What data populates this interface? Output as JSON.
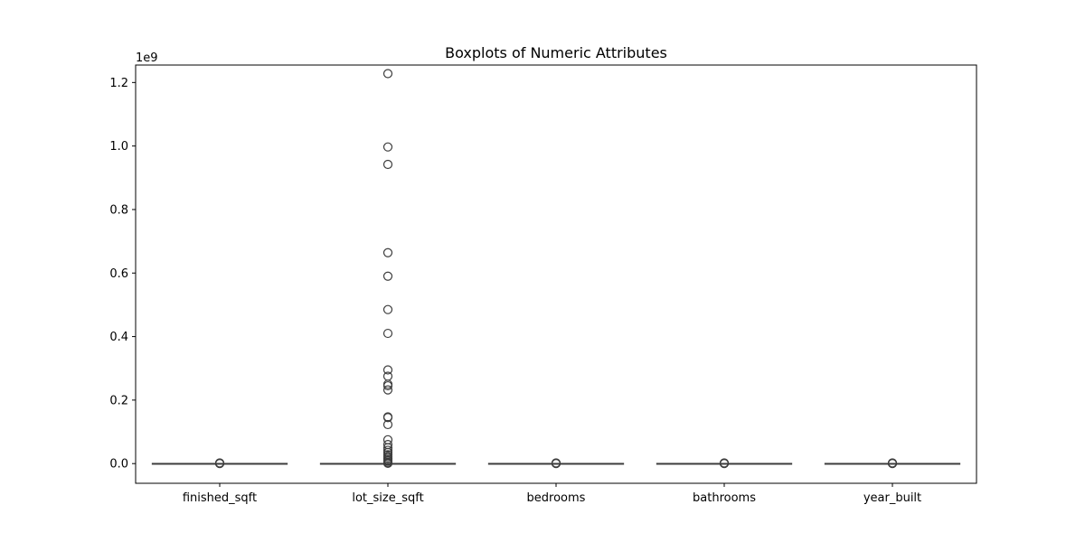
{
  "chart_data": {
    "type": "box",
    "title": "Boxplots of Numeric Attributes",
    "xlabel": "",
    "ylabel": "",
    "y_offset_label": "1e9",
    "ylim": [
      -0.062,
      1.255
    ],
    "y_ticks": [
      0.0,
      0.2,
      0.4,
      0.6,
      0.8,
      1.0,
      1.2
    ],
    "y_tick_labels": [
      "0.0",
      "0.2",
      "0.4",
      "0.6",
      "0.8",
      "1.0",
      "1.2"
    ],
    "grid": false,
    "categories": [
      "finished_sqft",
      "lot_size_sqft",
      "bedrooms",
      "bathrooms",
      "year_built"
    ],
    "boxes": [
      {
        "name": "finished_sqft",
        "whisker_low": 0,
        "q1": 0,
        "median": 0,
        "q3": 0,
        "whisker_high": 0,
        "fliers": [
          0.0,
          0.001,
          0.002
        ]
      },
      {
        "name": "lot_size_sqft",
        "whisker_low": 0,
        "q1": 0,
        "median": 0,
        "q3": 0,
        "whisker_high": 0,
        "fliers": [
          1.228,
          0.997,
          0.942,
          0.664,
          0.59,
          0.485,
          0.41,
          0.295,
          0.275,
          0.25,
          0.245,
          0.232,
          0.147,
          0.145,
          0.123,
          0.075,
          0.06,
          0.05,
          0.042,
          0.035,
          0.028,
          0.022,
          0.017,
          0.012,
          0.008,
          0.004,
          0.001
        ]
      },
      {
        "name": "bedrooms",
        "whisker_low": 0,
        "q1": 0,
        "median": 0,
        "q3": 0,
        "whisker_high": 0,
        "fliers": [
          0.0,
          0.001,
          0.002
        ]
      },
      {
        "name": "bathrooms",
        "whisker_low": 0,
        "q1": 0,
        "median": 0,
        "q3": 0,
        "whisker_high": 0,
        "fliers": [
          0.0,
          0.001,
          0.002
        ]
      },
      {
        "name": "year_built",
        "whisker_low": 0,
        "q1": 0,
        "median": 0,
        "q3": 0,
        "whisker_high": 0,
        "fliers": [
          0.0,
          0.001,
          0.002
        ]
      }
    ]
  }
}
